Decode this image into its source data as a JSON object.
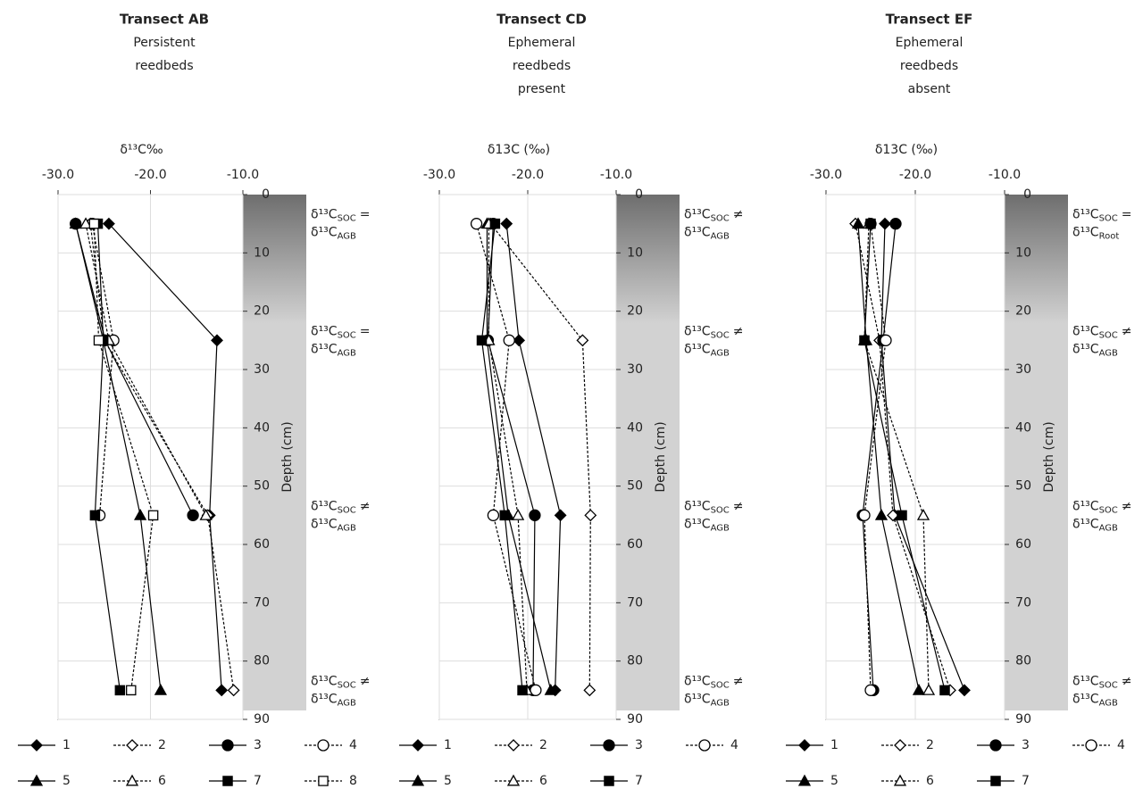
{
  "chart_data": [
    {
      "type": "line",
      "title": "Transect AB",
      "subtitle": [
        "Persistent",
        "reedbeds"
      ],
      "x_label": "δ¹³C‰",
      "y_label": "Depth (cm)",
      "xlim": [
        -30,
        -10
      ],
      "xticks": [
        {
          "value": -30,
          "label": "-30.0"
        },
        {
          "value": -20,
          "label": "-20.0"
        },
        {
          "value": -10,
          "label": "-10.0"
        }
      ],
      "ylim": [
        0,
        90
      ],
      "yticks": [
        0,
        10,
        20,
        30,
        40,
        50,
        60,
        70,
        80,
        90
      ],
      "grid": true,
      "depths": [
        5,
        25,
        55,
        85
      ],
      "annotation_symbol": "δ¹³C",
      "annotations": [
        {
          "left": "SOC",
          "relation": "=",
          "right": "AGB"
        },
        {
          "left": "SOC",
          "relation": "=",
          "right": "AGB"
        },
        {
          "left": "SOC",
          "relation": "≠",
          "right": "AGB"
        },
        {
          "left": "SOC",
          "relation": "≠",
          "right": "AGB"
        }
      ],
      "series": [
        {
          "name": "1",
          "color": "#000000",
          "marker": "diamond",
          "filled": true,
          "dashed": false,
          "values": [
            -24.5,
            -12.8,
            -13.6,
            -12.3
          ]
        },
        {
          "name": "2",
          "color": "#000000",
          "marker": "diamond",
          "filled": false,
          "dashed": true,
          "values": [
            -26.5,
            -25.0,
            -13.8,
            -11.0
          ]
        },
        {
          "name": "3",
          "color": "#000000",
          "marker": "circle",
          "filled": true,
          "dashed": false,
          "values": [
            -28.1,
            -24.9,
            -15.4,
            null
          ]
        },
        {
          "name": "4",
          "color": "#000000",
          "marker": "circle",
          "filled": false,
          "dashed": true,
          "values": [
            -26.3,
            -24.0,
            -25.5,
            null
          ]
        },
        {
          "name": "5",
          "color": "#000000",
          "marker": "triangle",
          "filled": true,
          "dashed": false,
          "values": [
            -28.1,
            -25.1,
            -21.1,
            -18.9
          ]
        },
        {
          "name": "6",
          "color": "#000000",
          "marker": "triangle",
          "filled": false,
          "dashed": true,
          "values": [
            -27.0,
            -24.5,
            -14.0,
            null
          ]
        },
        {
          "name": "7",
          "color": "#000000",
          "marker": "square",
          "filled": true,
          "dashed": false,
          "values": [
            -25.7,
            -25.1,
            -26.0,
            -23.3
          ]
        },
        {
          "name": "8",
          "color": "#000000",
          "marker": "square",
          "filled": false,
          "dashed": true,
          "values": [
            -26.1,
            -25.6,
            -19.7,
            -22.1
          ]
        }
      ]
    },
    {
      "type": "line",
      "title": "Transect CD",
      "subtitle": [
        "Ephemeral",
        "reedbeds",
        "present"
      ],
      "x_label": "δ13C (‰)",
      "y_label": "Depth (cm)",
      "xlim": [
        -30,
        -10
      ],
      "xticks": [
        {
          "value": -30,
          "label": "-30.0"
        },
        {
          "value": -20,
          "label": "-20.0"
        },
        {
          "value": -10,
          "label": "-10.0"
        }
      ],
      "ylim": [
        0,
        90
      ],
      "yticks": [
        0,
        10,
        20,
        30,
        40,
        50,
        60,
        70,
        80,
        90
      ],
      "grid": true,
      "depths": [
        5,
        25,
        55,
        85
      ],
      "annotation_symbol": "δ¹³C",
      "annotations": [
        {
          "left": "SOC",
          "relation": "≠",
          "right": "AGB"
        },
        {
          "left": "SOC",
          "relation": "≠",
          "right": "AGB"
        },
        {
          "left": "SOC",
          "relation": "≠",
          "right": "AGB"
        },
        {
          "left": "SOC",
          "relation": "≠",
          "right": "AGB"
        }
      ],
      "series": [
        {
          "name": "1",
          "color": "#000000",
          "marker": "diamond",
          "filled": true,
          "dashed": false,
          "values": [
            -22.4,
            -21.0,
            -16.3,
            -16.9
          ]
        },
        {
          "name": "2",
          "color": "#000000",
          "marker": "diamond",
          "filled": false,
          "dashed": true,
          "values": [
            -24.2,
            -13.8,
            -12.9,
            -13.0
          ]
        },
        {
          "name": "3",
          "color": "#000000",
          "marker": "circle",
          "filled": true,
          "dashed": false,
          "values": [
            -23.9,
            -24.5,
            -19.2,
            -19.4
          ]
        },
        {
          "name": "4",
          "color": "#000000",
          "marker": "circle",
          "filled": false,
          "dashed": true,
          "values": [
            -25.8,
            -22.1,
            -23.9,
            -19.1
          ]
        },
        {
          "name": "5",
          "color": "#000000",
          "marker": "triangle",
          "filled": true,
          "dashed": false,
          "values": [
            -24.6,
            -24.6,
            -22.2,
            -17.4
          ]
        },
        {
          "name": "6",
          "color": "#000000",
          "marker": "triangle",
          "filled": false,
          "dashed": true,
          "values": [
            -24.4,
            -24.4,
            -21.1,
            -20.1
          ]
        },
        {
          "name": "7",
          "color": "#000000",
          "marker": "square",
          "filled": true,
          "dashed": false,
          "values": [
            -23.7,
            -25.2,
            -22.6,
            -20.6
          ]
        }
      ]
    },
    {
      "type": "line",
      "title": "Transect EF",
      "subtitle": [
        "Ephemeral",
        "reedbeds",
        "absent"
      ],
      "x_label": "δ13C (‰)",
      "y_label": "Depth (cm)",
      "xlim": [
        -30,
        -10
      ],
      "xticks": [
        {
          "value": -30,
          "label": "-30.0"
        },
        {
          "value": -20,
          "label": "-20.0"
        },
        {
          "value": -10,
          "label": "-10.0"
        }
      ],
      "ylim": [
        0,
        90
      ],
      "yticks": [
        0,
        10,
        20,
        30,
        40,
        50,
        60,
        70,
        80,
        90
      ],
      "grid": true,
      "depths": [
        5,
        25,
        55,
        85
      ],
      "annotation_symbol": "δ¹³C",
      "annotations": [
        {
          "left": "SOC",
          "relation": "=",
          "right": "Root"
        },
        {
          "left": "SOC",
          "relation": "≠",
          "right": "AGB"
        },
        {
          "left": "SOC",
          "relation": "≠",
          "right": "AGB"
        },
        {
          "left": "SOC",
          "relation": "≠",
          "right": "AGB"
        }
      ],
      "series": [
        {
          "name": "1",
          "color": "#000000",
          "marker": "diamond",
          "filled": true,
          "dashed": false,
          "values": [
            -23.4,
            -23.8,
            -22.3,
            -14.5
          ]
        },
        {
          "name": "2",
          "color": "#000000",
          "marker": "diamond",
          "filled": false,
          "dashed": true,
          "values": [
            -26.7,
            -24.0,
            -22.5,
            -16.1
          ]
        },
        {
          "name": "3",
          "color": "#000000",
          "marker": "circle",
          "filled": true,
          "dashed": false,
          "values": [
            -22.2,
            -23.6,
            -25.9,
            -24.7
          ]
        },
        {
          "name": "4",
          "color": "#000000",
          "marker": "circle",
          "filled": false,
          "dashed": true,
          "values": [
            -25.0,
            -23.3,
            -25.7,
            -25.0
          ]
        },
        {
          "name": "5",
          "color": "#000000",
          "marker": "triangle",
          "filled": true,
          "dashed": false,
          "values": [
            -26.4,
            -25.5,
            -23.8,
            -19.6
          ]
        },
        {
          "name": "6",
          "color": "#000000",
          "marker": "triangle",
          "filled": false,
          "dashed": true,
          "values": [
            -25.2,
            -25.7,
            -19.1,
            -18.5
          ]
        },
        {
          "name": "7",
          "color": "#000000",
          "marker": "square",
          "filled": true,
          "dashed": false,
          "values": [
            -25.0,
            -25.7,
            -21.5,
            -16.7
          ]
        }
      ]
    }
  ]
}
